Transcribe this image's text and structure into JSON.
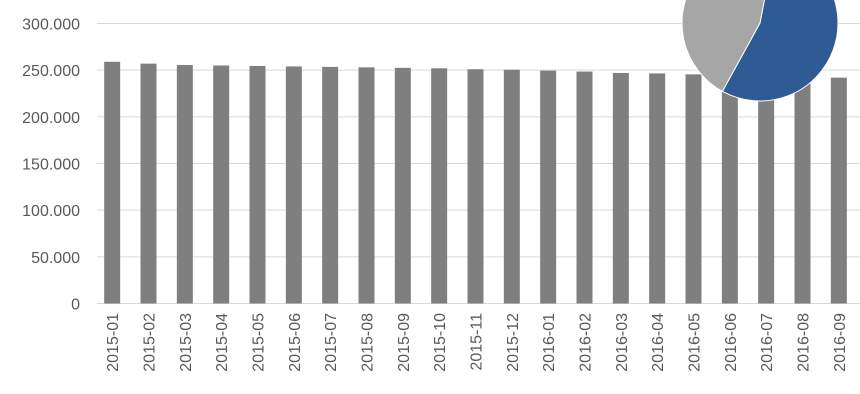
{
  "chart_data": [
    {
      "type": "bar",
      "categories": [
        "2015-01",
        "2015-02",
        "2015-03",
        "2015-04",
        "2015-05",
        "2015-06",
        "2015-07",
        "2015-08",
        "2015-09",
        "2015-10",
        "2015-11",
        "2015-12",
        "2016-01",
        "2016-02",
        "2016-03",
        "2016-04",
        "2016-05",
        "2016-06",
        "2016-07",
        "2016-08",
        "2016-09"
      ],
      "series": [
        {
          "color": "#7f7f7f",
          "values": [
            259000,
            257000,
            255500,
            255000,
            254500,
            254000,
            253500,
            253000,
            252500,
            252000,
            251000,
            250500,
            249500,
            248500,
            247000,
            246500,
            245500,
            244500,
            244000,
            243000,
            242000
          ]
        }
      ],
      "y_ticks": [
        "0",
        "50.000",
        "100.000",
        "150.000",
        "200.000",
        "250.000",
        "300.000"
      ],
      "ylim": [
        0,
        300000
      ],
      "grid": true,
      "title": "",
      "xlabel": "",
      "ylabel": ""
    },
    {
      "type": "pie",
      "slices": [
        {
          "value": 55,
          "color": "#2e5b93"
        },
        {
          "value": 45,
          "color": "#a6a6a6"
        }
      ]
    }
  ]
}
